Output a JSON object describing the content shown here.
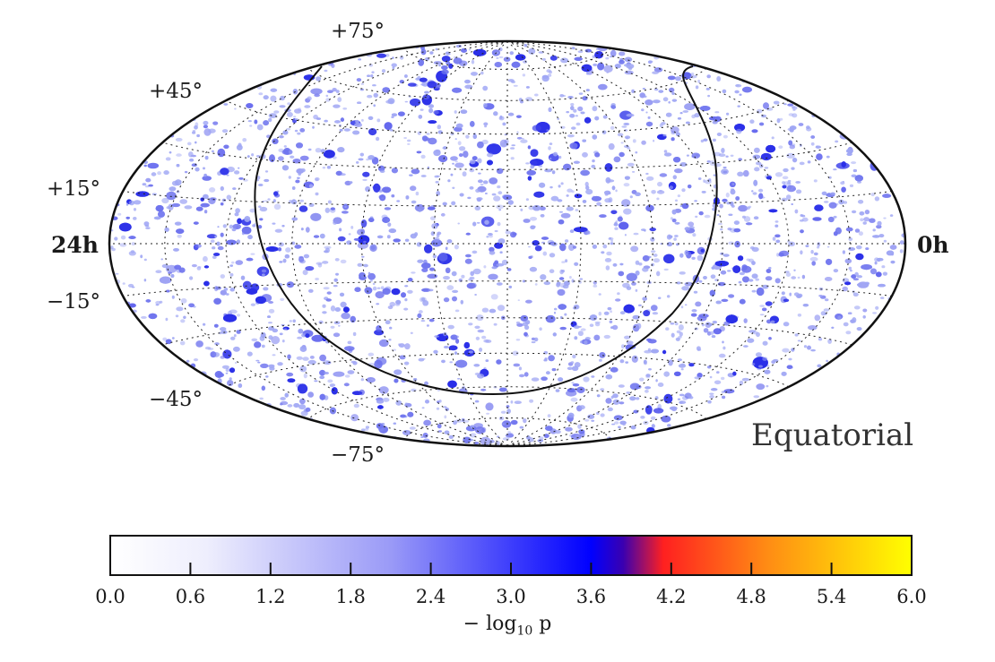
{
  "map": {
    "projection": "Hammer-Aitoff (equatorial)",
    "frame_label": "Equatorial",
    "dec_labels": [
      "+75°",
      "+45°",
      "+15°",
      "−15°",
      "−45°",
      "−75°"
    ],
    "ra_left_label": "24h",
    "ra_right_label": "0h",
    "overlay_curve": "galactic plane"
  },
  "colorbar": {
    "ticks": [
      "0.0",
      "0.6",
      "1.2",
      "1.8",
      "2.4",
      "3.0",
      "3.6",
      "4.2",
      "4.8",
      "5.4",
      "6.0"
    ],
    "label_prefix": "− log",
    "label_sub": "10",
    "label_suffix": " p",
    "min": 0.0,
    "max": 6.0,
    "colors": [
      "#ffffff",
      "#0000ff",
      "#ff2020",
      "#ffff00"
    ]
  }
}
